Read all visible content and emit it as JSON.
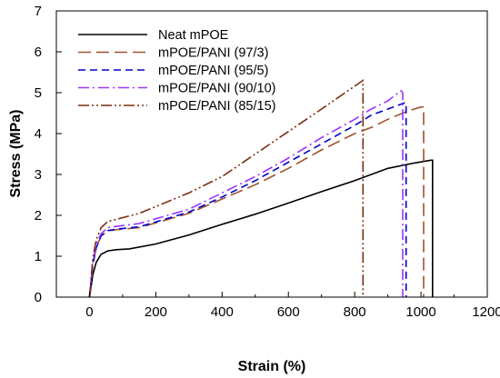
{
  "chart_data": {
    "type": "line",
    "title": "",
    "xlabel": "Strain (%)",
    "ylabel": "Stress (MPa)",
    "xlim": [
      -100,
      1200
    ],
    "ylim": [
      0,
      7
    ],
    "xticks": [
      0,
      200,
      400,
      600,
      800,
      1000,
      1200
    ],
    "yticks": [
      0,
      1,
      2,
      3,
      4,
      5,
      6,
      7
    ],
    "grid": false,
    "legend_position": "top-left",
    "series": [
      {
        "name": "Neat mPOE",
        "color": "#000000",
        "dash": "solid",
        "points": [
          [
            0,
            0
          ],
          [
            10,
            0.55
          ],
          [
            20,
            0.85
          ],
          [
            35,
            1.05
          ],
          [
            55,
            1.13
          ],
          [
            80,
            1.16
          ],
          [
            120,
            1.18
          ],
          [
            200,
            1.3
          ],
          [
            300,
            1.52
          ],
          [
            400,
            1.78
          ],
          [
            500,
            2.03
          ],
          [
            600,
            2.3
          ],
          [
            700,
            2.58
          ],
          [
            800,
            2.85
          ],
          [
            900,
            3.15
          ],
          [
            980,
            3.28
          ],
          [
            1030,
            3.35
          ],
          [
            1035,
            3.35
          ],
          [
            1035,
            0
          ]
        ]
      },
      {
        "name": "mPOE/PANI (97/3)",
        "color": "#a0522d",
        "dash": "long-dash",
        "points": [
          [
            0,
            0
          ],
          [
            10,
            0.8
          ],
          [
            20,
            1.2
          ],
          [
            35,
            1.5
          ],
          [
            55,
            1.62
          ],
          [
            80,
            1.65
          ],
          [
            150,
            1.7
          ],
          [
            300,
            2.05
          ],
          [
            400,
            2.4
          ],
          [
            500,
            2.75
          ],
          [
            600,
            3.15
          ],
          [
            700,
            3.6
          ],
          [
            800,
            4.0
          ],
          [
            850,
            4.15
          ],
          [
            900,
            4.35
          ],
          [
            960,
            4.55
          ],
          [
            1000,
            4.65
          ],
          [
            1008,
            4.65
          ],
          [
            1008,
            0
          ]
        ]
      },
      {
        "name": "mPOE/PANI (95/5)",
        "color": "#0000cc",
        "dash": "dash",
        "points": [
          [
            0,
            0
          ],
          [
            10,
            0.8
          ],
          [
            20,
            1.2
          ],
          [
            35,
            1.5
          ],
          [
            55,
            1.63
          ],
          [
            80,
            1.66
          ],
          [
            150,
            1.72
          ],
          [
            300,
            2.08
          ],
          [
            400,
            2.45
          ],
          [
            500,
            2.85
          ],
          [
            600,
            3.3
          ],
          [
            700,
            3.75
          ],
          [
            800,
            4.2
          ],
          [
            850,
            4.45
          ],
          [
            900,
            4.6
          ],
          [
            950,
            4.75
          ],
          [
            955,
            4.75
          ],
          [
            955,
            0
          ]
        ]
      },
      {
        "name": "mPOE/PANI (90/10)",
        "color": "#9933ff",
        "dash": "dash-dot",
        "points": [
          [
            0,
            0
          ],
          [
            10,
            0.85
          ],
          [
            20,
            1.3
          ],
          [
            35,
            1.55
          ],
          [
            55,
            1.7
          ],
          [
            80,
            1.73
          ],
          [
            150,
            1.8
          ],
          [
            300,
            2.15
          ],
          [
            400,
            2.55
          ],
          [
            500,
            2.95
          ],
          [
            600,
            3.4
          ],
          [
            700,
            3.9
          ],
          [
            800,
            4.35
          ],
          [
            850,
            4.6
          ],
          [
            900,
            4.8
          ],
          [
            940,
            5.05
          ],
          [
            945,
            5.0
          ],
          [
            945,
            0
          ]
        ]
      },
      {
        "name": "mPOE/PANI (85/15)",
        "color": "#7a2e0e",
        "dash": "dash-dot-dot",
        "points": [
          [
            0,
            0
          ],
          [
            10,
            0.95
          ],
          [
            20,
            1.4
          ],
          [
            35,
            1.7
          ],
          [
            55,
            1.85
          ],
          [
            80,
            1.9
          ],
          [
            150,
            2.05
          ],
          [
            300,
            2.55
          ],
          [
            400,
            2.95
          ],
          [
            500,
            3.5
          ],
          [
            600,
            4.05
          ],
          [
            700,
            4.6
          ],
          [
            780,
            5.05
          ],
          [
            825,
            5.3
          ],
          [
            825,
            0
          ]
        ]
      }
    ]
  }
}
